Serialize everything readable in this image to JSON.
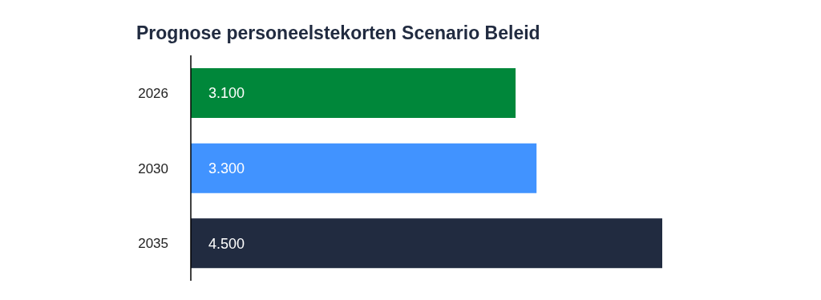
{
  "chart_data": {
    "type": "bar",
    "orientation": "horizontal",
    "title": "Prognose personeelstekorten Scenario Beleid",
    "categories": [
      "2026",
      "2030",
      "2035"
    ],
    "values": [
      3100,
      3300,
      4500
    ],
    "colors": [
      "#00873a",
      "#4193ff",
      "#212b40"
    ],
    "value_labels": [
      "3.100",
      "3.300",
      "4.500"
    ],
    "grid": false,
    "legend": false
  }
}
